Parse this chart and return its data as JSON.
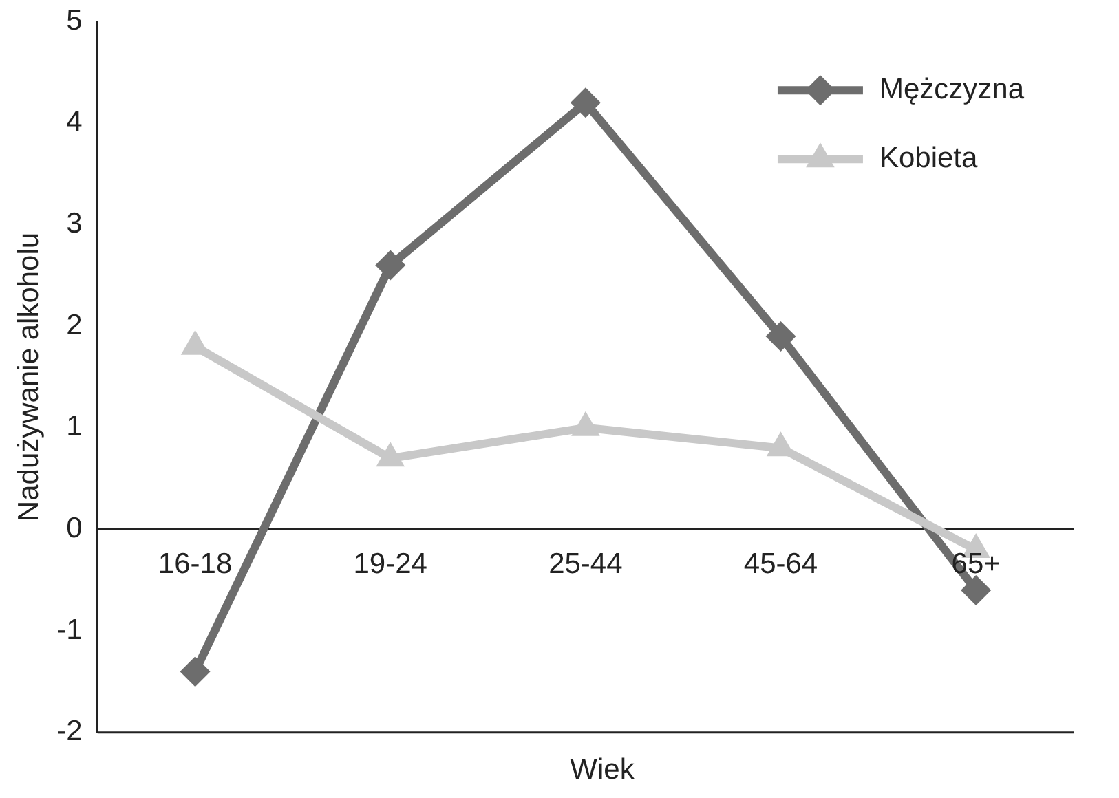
{
  "chart_data": {
    "type": "line",
    "xlabel": "Wiek",
    "ylabel": "Nadużywanie alkoholu",
    "categories": [
      "16-18",
      "19-24",
      "25-44",
      "45-64",
      "65+"
    ],
    "series": [
      {
        "name": "Mężczyzna",
        "color": "#6d6d6d",
        "marker": "diamond",
        "values": [
          -1.4,
          2.6,
          4.2,
          1.9,
          -0.6
        ]
      },
      {
        "name": "Kobieta",
        "color": "#c8c8c8",
        "marker": "triangle",
        "values": [
          1.8,
          0.7,
          1.0,
          0.8,
          -0.2
        ]
      }
    ],
    "ylim": [
      -2,
      5
    ],
    "yticks": [
      -2,
      -1,
      0,
      1,
      2,
      3,
      4,
      5
    ],
    "grid": false,
    "legend": "top right"
  }
}
